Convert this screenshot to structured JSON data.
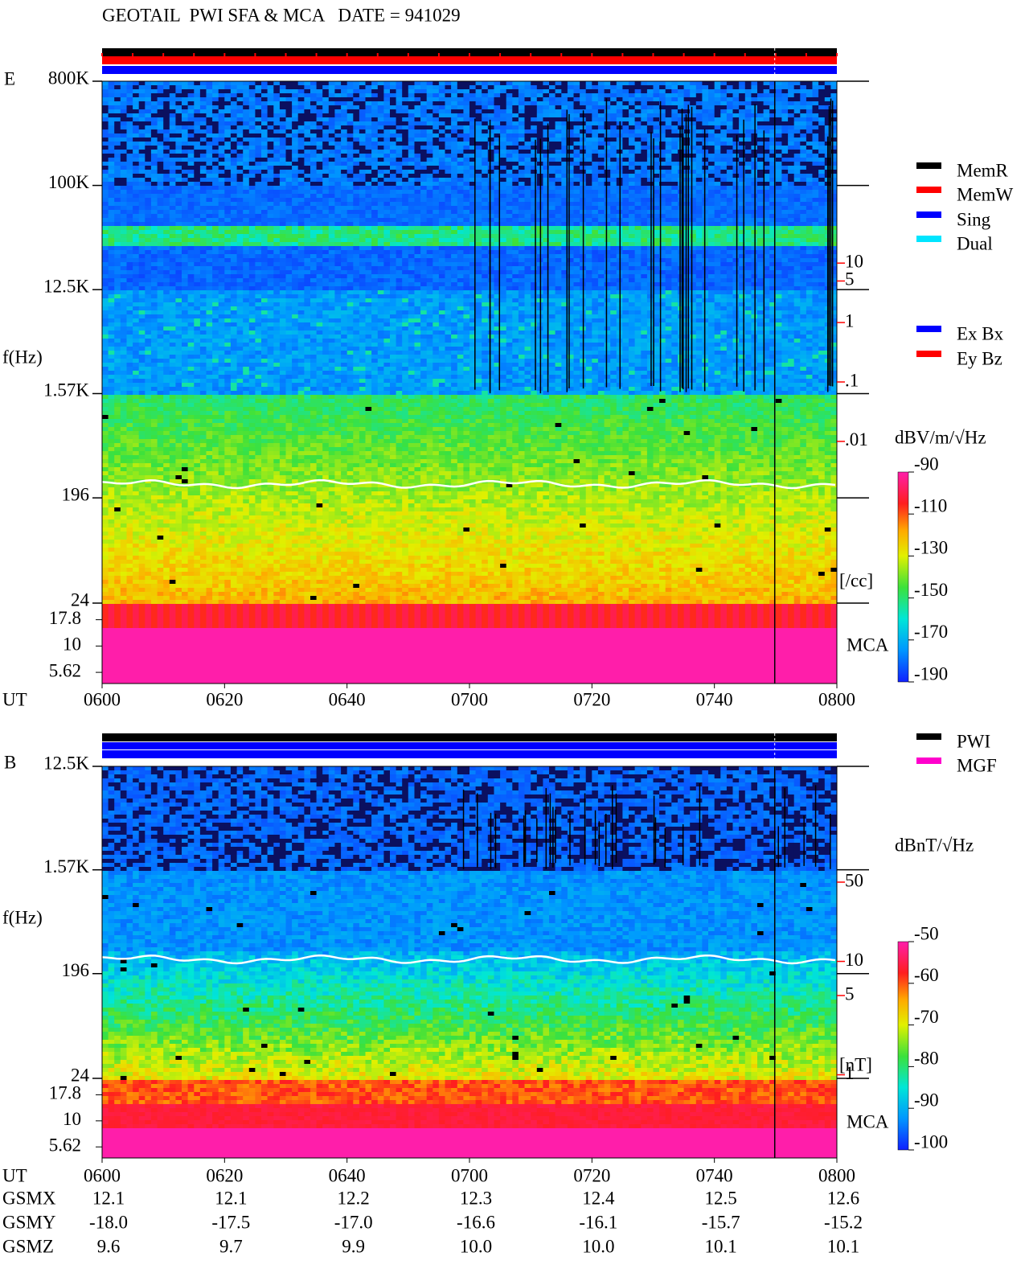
{
  "title": "GEOTAIL  PWI SFA & MCA   DATE = 941029",
  "chart_data": [
    {
      "type": "spectrogram",
      "panel_label": "E",
      "ylabel": "f(Hz)",
      "xlabel": "UT",
      "log_y": true,
      "ylim": [
        24,
        800000
      ],
      "yticks": [
        {
          "value": 800000,
          "label": "800K"
        },
        {
          "value": 100000,
          "label": "100K"
        },
        {
          "value": 12500,
          "label": "12.5K"
        },
        {
          "value": 1570,
          "label": "1.57K"
        },
        196,
        24
      ],
      "mca_label": "MCA",
      "mca_ylim": [
        4.4,
        25.6
      ],
      "mca_yticks": [
        17.8,
        10,
        5.62
      ],
      "xlim": [
        360,
        480
      ],
      "xticks": [
        {
          "value": 360,
          "label": "0600"
        },
        {
          "value": 380,
          "label": "0620"
        },
        {
          "value": 400,
          "label": "0640"
        },
        {
          "value": 420,
          "label": "0700"
        },
        {
          "value": 440,
          "label": "0720"
        },
        {
          "value": 460,
          "label": "0740"
        },
        {
          "value": 480,
          "label": "0800"
        }
      ],
      "y2lim": [
        1.9e-05,
        11500
      ],
      "y2ticks": [
        10,
        5,
        1,
        {
          "value": 0.1,
          "label": ".1"
        },
        {
          "value": 0.01,
          "label": ".01"
        }
      ],
      "y2label": "[/cc]",
      "y2color": "#ff0000",
      "colorbar": {
        "label": "dBV/m/√Hz",
        "clim": [
          -190,
          -90
        ],
        "ticks": [
          -90,
          -110,
          -130,
          -150,
          -170,
          -190
        ]
      },
      "legend_groups": [
        [
          {
            "name": "MemR",
            "color": "#000000"
          },
          {
            "name": "MemW",
            "color": "#ff0000"
          },
          {
            "name": "Sing",
            "color": "#0000ff"
          },
          {
            "name": "Dual",
            "color": "#00e5ff"
          }
        ],
        [
          {
            "name": "Ex Bx",
            "color": "#0000ff"
          },
          {
            "name": "Ey Bz",
            "color": "#ff0000"
          }
        ]
      ]
    },
    {
      "type": "spectrogram",
      "panel_label": "B",
      "ylabel": "f(Hz)",
      "xlabel": "UT",
      "log_y": true,
      "ylim": [
        24,
        12500
      ],
      "yticks": [
        {
          "value": 12500,
          "label": "12.5K"
        },
        {
          "value": 1570,
          "label": "1.57K"
        },
        196,
        24
      ],
      "mca_label": "MCA",
      "mca_ylim": [
        4.4,
        25.6
      ],
      "mca_yticks": [
        17.8,
        10,
        5.62
      ],
      "xlim": [
        360,
        480
      ],
      "xticks": [
        {
          "value": 360,
          "label": "0600"
        },
        {
          "value": 380,
          "label": "0620"
        },
        {
          "value": 400,
          "label": "0640"
        },
        {
          "value": 420,
          "label": "0700"
        },
        {
          "value": 440,
          "label": "0720"
        },
        {
          "value": 460,
          "label": "0740"
        },
        {
          "value": 480,
          "label": "0800"
        }
      ],
      "y2lim": [
        0.93,
        525
      ],
      "y2ticks": [
        50,
        10,
        5,
        1
      ],
      "y2label": "[nT]",
      "y2color": "#ff0000",
      "colorbar": {
        "label": "dBnT/√Hz",
        "clim": [
          -100,
          -50
        ],
        "ticks": [
          -50,
          -60,
          -70,
          -80,
          -90,
          -100
        ]
      },
      "legend_groups": [
        [
          {
            "name": "PWI",
            "color": "#000000"
          },
          {
            "name": "MGF",
            "color": "#ff00cc"
          }
        ]
      ]
    }
  ],
  "orbit": {
    "rows": [
      {
        "label": "GSMX",
        "values": [
          "12.1",
          "12.1",
          "12.2",
          "12.3",
          "12.4",
          "12.5",
          "12.6"
        ]
      },
      {
        "label": "GSMY",
        "values": [
          "-18.0",
          "-17.5",
          "-17.0",
          "-16.6",
          "-16.1",
          "-15.7",
          "-15.2"
        ]
      },
      {
        "label": "GSMZ",
        "values": [
          "9.6",
          "9.7",
          "9.9",
          "10.0",
          "10.0",
          "10.1",
          "10.1"
        ]
      }
    ]
  }
}
